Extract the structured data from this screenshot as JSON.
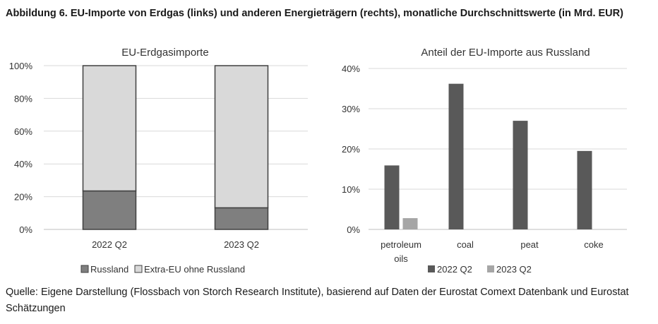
{
  "figure": {
    "title": "Abbildung 6. EU-Importe von Erdgas (links) und anderen Energieträgern (rechts), monatliche Durchschnittswerte (in Mrd. EUR)",
    "source": "Quelle: Eigene Darstellung (Flossbach von Storch Research Institute), basierend auf Daten der Eurostat Comext Datenbank und Eurostat Schätzungen"
  },
  "colors": {
    "russia": "#7f7f7f",
    "extra_eu": "#d9d9d9",
    "q2_2022": "#595959",
    "q2_2023": "#a6a6a6",
    "grid": "#d9d9d9",
    "axis": "#bfbfbf"
  },
  "chart_data": [
    {
      "type": "bar",
      "stacked": true,
      "title": "EU-Erdgasimporte",
      "categories": [
        "2022 Q2",
        "2023 Q2"
      ],
      "series": [
        {
          "name": "Russland",
          "values": [
            23.5,
            13.2
          ]
        },
        {
          "name": "Extra-EU ohne Russland",
          "values": [
            76.5,
            86.8
          ]
        }
      ],
      "ylim": [
        0,
        100
      ],
      "yticks": [
        "0%",
        "20%",
        "40%",
        "60%",
        "80%",
        "100%"
      ],
      "legend": "bottom"
    },
    {
      "type": "bar",
      "title": "Anteil der EU-Importe aus Russland",
      "categories": [
        [
          "petroleum",
          "oils"
        ],
        [
          "coal"
        ],
        [
          "peat"
        ],
        [
          "coke"
        ]
      ],
      "series": [
        {
          "name": "2022 Q2",
          "values": [
            15.9,
            36.2,
            27.0,
            19.5
          ]
        },
        {
          "name": "2023 Q2",
          "values": [
            2.8,
            0,
            0,
            0
          ]
        }
      ],
      "ylim": [
        0,
        40
      ],
      "yticks": [
        "0%",
        "10%",
        "20%",
        "30%",
        "40%"
      ],
      "legend": "bottom"
    }
  ]
}
